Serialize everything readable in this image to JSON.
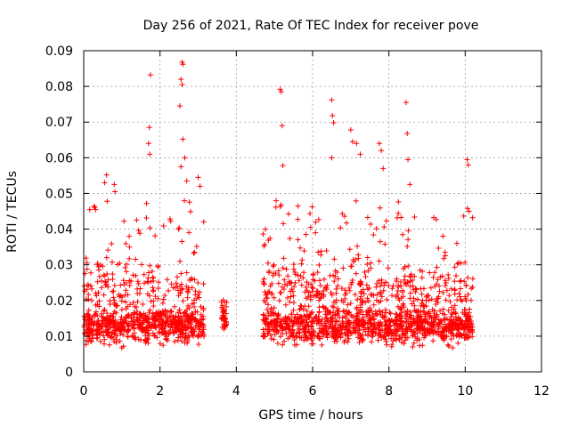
{
  "chart_data": {
    "type": "scatter",
    "title": "Day 256 of 2021, Rate Of TEC Index for receiver pove",
    "xlabel": "GPS time / hours",
    "ylabel": "ROTI / TECUs",
    "xlim": [
      0,
      12
    ],
    "ylim": [
      0,
      0.09
    ],
    "xticks": [
      "0",
      "2",
      "4",
      "6",
      "8",
      "10",
      "12"
    ],
    "yticks": [
      "0",
      "0.01",
      "0.02",
      "0.03",
      "0.04",
      "0.05",
      "0.06",
      "0.07",
      "0.08",
      "0.09"
    ],
    "grid": true,
    "marker": "+",
    "color": "#ff0000",
    "segments": [
      {
        "start": 0.0,
        "end": 3.15
      },
      {
        "start": 3.6,
        "end": 3.75
      },
      {
        "start": 4.7,
        "end": 10.2
      }
    ],
    "outliers": [
      [
        1.75,
        0.0832
      ],
      [
        1.72,
        0.0685
      ],
      [
        1.7,
        0.064
      ],
      [
        1.73,
        0.061
      ],
      [
        2.58,
        0.0868
      ],
      [
        2.6,
        0.0862
      ],
      [
        2.55,
        0.082
      ],
      [
        2.58,
        0.0805
      ],
      [
        2.52,
        0.0745
      ],
      [
        2.6,
        0.0652
      ],
      [
        2.65,
        0.06
      ],
      [
        2.55,
        0.0575
      ],
      [
        2.7,
        0.0535
      ],
      [
        3.0,
        0.0545
      ],
      [
        3.05,
        0.052
      ],
      [
        0.6,
        0.0552
      ],
      [
        0.55,
        0.053
      ],
      [
        0.8,
        0.0525
      ],
      [
        0.82,
        0.0505
      ],
      [
        5.15,
        0.0792
      ],
      [
        5.18,
        0.0785
      ],
      [
        5.2,
        0.069
      ],
      [
        5.22,
        0.0578
      ],
      [
        6.5,
        0.0762
      ],
      [
        6.52,
        0.0718
      ],
      [
        6.55,
        0.0698
      ],
      [
        6.5,
        0.06
      ],
      [
        7.0,
        0.0678
      ],
      [
        7.05,
        0.0645
      ],
      [
        7.15,
        0.064
      ],
      [
        7.25,
        0.061
      ],
      [
        7.75,
        0.064
      ],
      [
        7.8,
        0.062
      ],
      [
        7.85,
        0.057
      ],
      [
        8.45,
        0.0755
      ],
      [
        8.48,
        0.0668
      ],
      [
        8.5,
        0.0595
      ],
      [
        8.55,
        0.0525
      ],
      [
        10.05,
        0.0595
      ],
      [
        10.08,
        0.058
      ],
      [
        10.1,
        0.045
      ]
    ]
  }
}
